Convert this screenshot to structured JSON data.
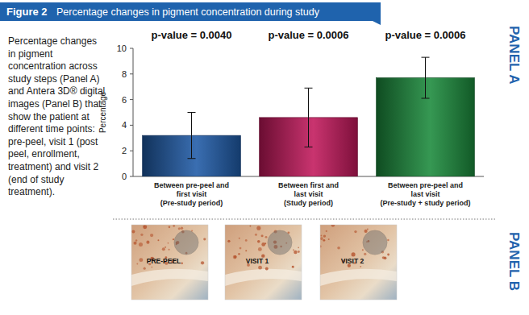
{
  "figure": {
    "number": "Figure 2",
    "title": "Percentage changes in pigment concentration during study"
  },
  "caption": "Percentage changes in pigment concentration across study steps (Panel A) and Antera 3D® digital images (Panel B) that show the patient at different time points: pre-peel, visit 1 (post peel, enrollment, treatment) and visit 2 (end of study treatment).",
  "panel_labels": [
    "PANEL A",
    "PANEL B"
  ],
  "images": [
    "PRE-PEEL",
    "VISIT 1",
    "VISIT 2"
  ],
  "chart_data": {
    "type": "bar",
    "y_label": "Percentage",
    "categories": [
      "Between pre-peel and\nfirst visit\n(Pre-study period)",
      "Between first and\nlast visit\n(Study period)",
      "Between pre-peel and\nlast visit\n(Pre-study + study period)"
    ],
    "values": [
      3.2,
      4.6,
      7.7
    ],
    "errors": [
      1.8,
      2.3,
      1.6
    ],
    "colors": [
      "#1f5aa6",
      "#c2185b",
      "#1b8a3c"
    ],
    "annotations": [
      "p-value = 0.0040",
      "p-value = 0.0006",
      "p-value = 0.0006"
    ],
    "ylim": [
      0,
      10
    ],
    "yticks": [
      0,
      2,
      4,
      6,
      8,
      10
    ],
    "grid": false
  }
}
